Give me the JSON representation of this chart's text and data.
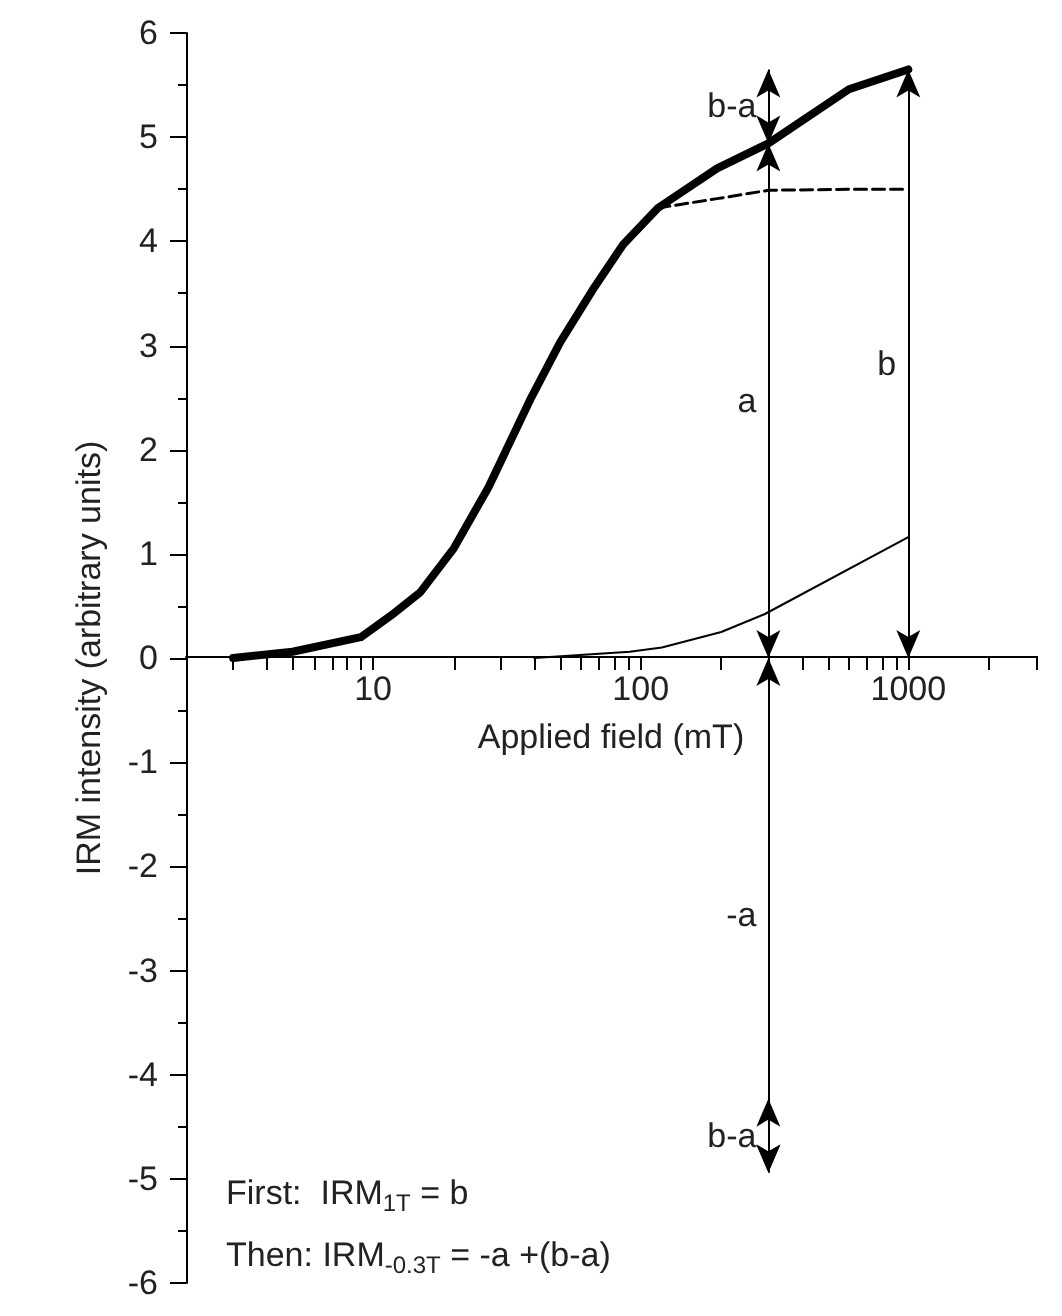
{
  "chart_data": {
    "type": "line",
    "xlabel": "Applied field (mT)",
    "ylabel": "IRM intensity (arbitrary units)",
    "log": "x",
    "xlim": [
      2,
      3000
    ],
    "xticks": [
      10,
      100,
      1000
    ],
    "ylim": [
      -6,
      6
    ],
    "yticks": [
      -6,
      -5,
      -4,
      -3,
      -2,
      -1,
      0,
      1,
      2,
      3,
      4,
      5,
      6
    ],
    "marker": "none",
    "series": [
      {
        "color": "#000000",
        "x": [
          3,
          5,
          9,
          11.7,
          15,
          20,
          27,
          39,
          50,
          66,
          86,
          116,
          193,
          300,
          600,
          1000
        ],
        "values": [
          0,
          0.06,
          0.2,
          0.41,
          0.63,
          1.05,
          1.64,
          2.5,
          3.03,
          3.53,
          3.97,
          4.32,
          4.7,
          4.94,
          5.46,
          5.65
        ]
      },
      {
        "color": "#000000",
        "line_style": "dashed",
        "x": [
          116,
          193,
          300,
          600,
          1000
        ],
        "values": [
          4.32,
          4.41,
          4.49,
          4.5,
          4.5
        ]
      },
      {
        "color": "#000000",
        "x": [
          40,
          91,
          120,
          200,
          290,
          1000
        ],
        "values": [
          0,
          0.06,
          0.1,
          0.25,
          0.42,
          1.16
        ]
      }
    ],
    "annotations": [
      "b-a",
      "a",
      "b",
      "-a",
      "b-a",
      "First:  IRM$_{1T}$ = b",
      "Then: IRM$_{-0.3T}$ = -a +(b-a)"
    ]
  }
}
